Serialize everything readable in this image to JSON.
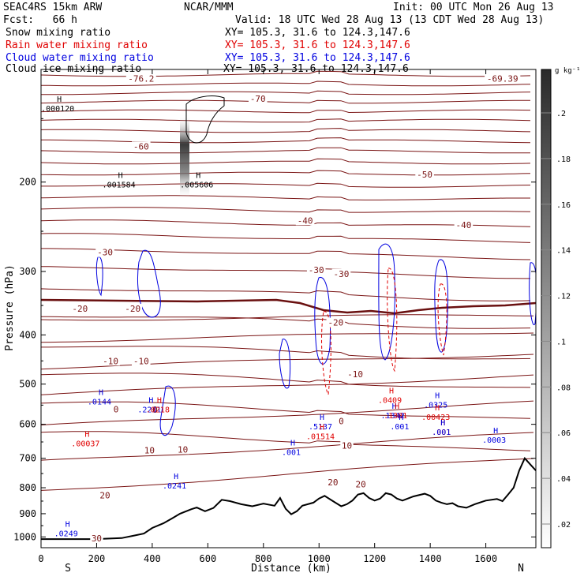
{
  "header": {
    "model": "SEAC4RS 15km ARW",
    "org": "NCAR/MMM",
    "init": "Init: 00 UTC Mon 26 Aug 13",
    "fcst": "Fcst:   66 h",
    "valid": "Valid: 18 UTC Wed 28 Aug 13 (13 CDT Wed 28 Aug 13)"
  },
  "fields": [
    {
      "name": "Snow mixing ratio",
      "xy": "XY= 105.3, 31.6 to 124.3,147.6",
      "color": "#000000"
    },
    {
      "name": "Rain water mixing ratio",
      "xy": "XY= 105.3, 31.6 to 124.3,147.6",
      "color": "#e00000"
    },
    {
      "name": "Cloud water mixing ratio",
      "xy": "XY= 105.3, 31.6 to 124.3,147.6",
      "color": "#0000e0"
    },
    {
      "name": "Cloud ice mixing ratio",
      "xy": "XY= 105.3, 31.6 to 124.3,147.6",
      "color": "#000000"
    }
  ],
  "colors": {
    "temperature": "#7a1414",
    "rain": "#e00000",
    "cloud": "#0000e0",
    "terrain": "#000000"
  },
  "chart_data": {
    "type": "cross-section",
    "xlabel": "Distance (km)",
    "ylabel": "Pressure (hPa)",
    "xlim": [
      0,
      1780
    ],
    "ylim": [
      1050,
      120
    ],
    "y_scale": "log",
    "x_ticks": [
      "0",
      "200",
      "400",
      "600",
      "800",
      "1000",
      "1200",
      "1400",
      "1600"
    ],
    "y_ticks": [
      "200",
      "300",
      "400",
      "500",
      "600",
      "700",
      "800",
      "900",
      "1000"
    ],
    "end_labels": {
      "left": "S",
      "right": "N"
    },
    "colorbar": {
      "unit": "g kg⁻¹",
      "ticks": [
        ".2",
        ".18",
        ".16",
        ".14",
        ".12",
        ".1",
        ".08",
        ".06",
        ".04",
        ".02"
      ]
    },
    "isotherm_labels": [
      {
        "text": "-76.2",
        "x": 360,
        "p": 125
      },
      {
        "text": "-69.39",
        "x": 1660,
        "p": 125
      },
      {
        "text": "-70",
        "x": 780,
        "p": 137
      },
      {
        "text": "-60",
        "x": 360,
        "p": 170
      },
      {
        "text": "-50",
        "x": 1380,
        "p": 193
      },
      {
        "text": "-40",
        "x": 950,
        "p": 238
      },
      {
        "text": "-40",
        "x": 1520,
        "p": 243
      },
      {
        "text": "-30",
        "x": 230,
        "p": 275
      },
      {
        "text": "-30",
        "x": 990,
        "p": 298
      },
      {
        "text": "-30",
        "x": 1080,
        "p": 303
      },
      {
        "text": "-20",
        "x": 140,
        "p": 355
      },
      {
        "text": "-20",
        "x": 330,
        "p": 355
      },
      {
        "text": "-20",
        "x": 1060,
        "p": 378
      },
      {
        "text": "-10",
        "x": 250,
        "p": 450
      },
      {
        "text": "-10",
        "x": 360,
        "p": 450
      },
      {
        "text": "-10",
        "x": 1130,
        "p": 478
      },
      {
        "text": "0",
        "x": 270,
        "p": 560
      },
      {
        "text": "0",
        "x": 410,
        "p": 561
      },
      {
        "text": "0",
        "x": 1080,
        "p": 591
      },
      {
        "text": "10",
        "x": 390,
        "p": 675
      },
      {
        "text": "10",
        "x": 510,
        "p": 672
      },
      {
        "text": "10",
        "x": 1100,
        "p": 660
      },
      {
        "text": "20",
        "x": 230,
        "p": 827
      },
      {
        "text": "20",
        "x": 1050,
        "p": 780
      },
      {
        "text": "20",
        "x": 1150,
        "p": 787
      },
      {
        "text": "30",
        "x": 200,
        "p": 1005
      }
    ],
    "extrema": [
      {
        "text": ".000120",
        "x": 60,
        "p": 143,
        "color": "#000000"
      },
      {
        "text": ".001584",
        "x": 280,
        "p": 202,
        "color": "#000000"
      },
      {
        "text": ".005606",
        "x": 560,
        "p": 202,
        "color": "#000000"
      },
      {
        "text": ".0144",
        "x": 210,
        "p": 541,
        "color": "#0000e0"
      },
      {
        "text": ".2231",
        "x": 390,
        "p": 560,
        "color": "#0000e0"
      },
      {
        "text": ".0218",
        "x": 420,
        "p": 560,
        "color": "#e00000"
      },
      {
        "text": ".00037",
        "x": 160,
        "p": 653,
        "color": "#e00000"
      },
      {
        "text": ".0241",
        "x": 480,
        "p": 792,
        "color": "#0000e0"
      },
      {
        "text": ".0249",
        "x": 90,
        "p": 983,
        "color": "#0000e0"
      },
      {
        "text": ".001",
        "x": 900,
        "p": 680,
        "color": "#0000e0"
      },
      {
        "text": ".5137",
        "x": 1005,
        "p": 605,
        "color": "#0000e0"
      },
      {
        "text": ".01514",
        "x": 1005,
        "p": 633,
        "color": "#e00000"
      },
      {
        "text": ".0409",
        "x": 1255,
        "p": 537,
        "color": "#e00000"
      },
      {
        "text": ".1342",
        "x": 1265,
        "p": 576,
        "color": "#0000e0"
      },
      {
        "text": ".1381",
        "x": 1275,
        "p": 576,
        "color": "#e00000"
      },
      {
        "text": ".001",
        "x": 1290,
        "p": 605,
        "color": "#0000e0"
      },
      {
        "text": ".0325",
        "x": 1420,
        "p": 548,
        "color": "#0000e0"
      },
      {
        "text": ".00423",
        "x": 1420,
        "p": 580,
        "color": "#e00000"
      },
      {
        "text": ".001",
        "x": 1440,
        "p": 620,
        "color": "#e00000"
      },
      {
        "text": ".001",
        "x": 1440,
        "p": 620,
        "color": "#0000e0"
      },
      {
        "text": ".0003",
        "x": 1630,
        "p": 643,
        "color": "#0000e0"
      }
    ],
    "terrain": {
      "x": [
        0,
        200,
        290,
        330,
        370,
        400,
        440,
        470,
        500,
        540,
        560,
        590,
        620,
        650,
        680,
        720,
        760,
        800,
        840,
        860,
        880,
        900,
        920,
        940,
        980,
        1000,
        1020,
        1050,
        1080,
        1100,
        1120,
        1140,
        1160,
        1180,
        1200,
        1220,
        1240,
        1260,
        1280,
        1300,
        1340,
        1380,
        1400,
        1420,
        1440,
        1460,
        1480,
        1500,
        1530,
        1560,
        1600,
        1640,
        1660,
        1680,
        1700,
        1720,
        1740,
        1760,
        1780
      ],
      "p": [
        1010,
        1010,
        1005,
        995,
        985,
        960,
        940,
        920,
        900,
        882,
        875,
        890,
        877,
        845,
        850,
        862,
        870,
        860,
        868,
        838,
        880,
        902,
        890,
        868,
        856,
        840,
        830,
        850,
        870,
        862,
        848,
        825,
        820,
        838,
        848,
        840,
        820,
        825,
        840,
        848,
        832,
        822,
        830,
        848,
        856,
        862,
        858,
        870,
        876,
        862,
        848,
        842,
        850,
        825,
        800,
        740,
        700,
        720,
        740
      ]
    }
  }
}
